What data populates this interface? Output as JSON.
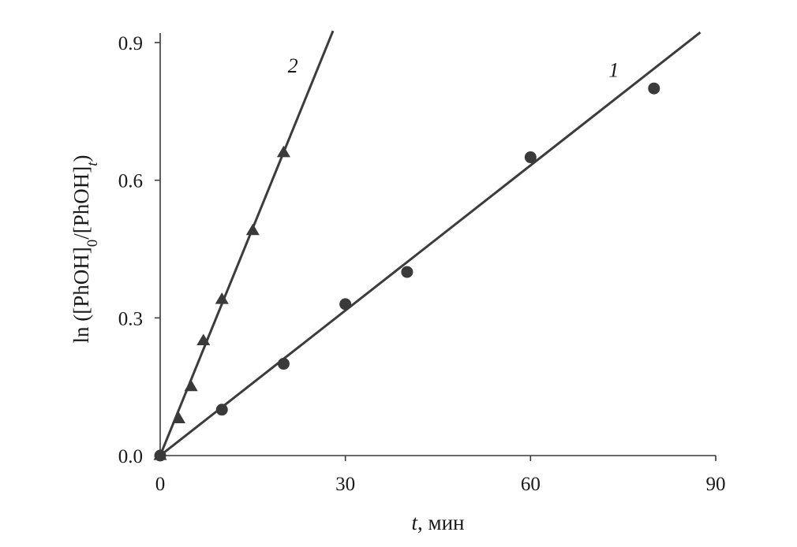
{
  "chart_data": {
    "type": "scatter",
    "title": "",
    "xlabel_italic": "t",
    "xlabel_rest": ", мин",
    "ylabel": "ln ([PhOH]0/[PhOH]t)",
    "ylabel_parts": {
      "a": "ln ([PhOH]",
      "sub0": "0",
      "b": "/[PhOH]",
      "subt": "t",
      "c": ")"
    },
    "xlim": [
      0,
      90
    ],
    "ylim": [
      0,
      0.9
    ],
    "x_ticks": [
      {
        "value": 0,
        "label": "0"
      },
      {
        "value": 30,
        "label": "30"
      },
      {
        "value": 60,
        "label": "60"
      },
      {
        "value": 90,
        "label": "90"
      }
    ],
    "y_ticks": [
      {
        "value": 0,
        "label": "0.0"
      },
      {
        "value": 0.3,
        "label": "0.3"
      },
      {
        "value": 0.6,
        "label": "0.6"
      },
      {
        "value": 0.9,
        "label": "0.9"
      }
    ],
    "grid": false,
    "colors": {
      "marker": "#3a3a3a",
      "line": "#3c3c3c",
      "axis": "#3a3a3a"
    },
    "series": [
      {
        "name": "1",
        "marker": "circle",
        "points": [
          {
            "x": 0,
            "y": 0
          },
          {
            "x": 10,
            "y": 0.1
          },
          {
            "x": 20,
            "y": 0.2
          },
          {
            "x": 30,
            "y": 0.33
          },
          {
            "x": 40,
            "y": 0.4
          },
          {
            "x": 60,
            "y": 0.65
          },
          {
            "x": 80,
            "y": 0.8
          }
        ],
        "fit": {
          "slope": 0.01054,
          "x_end": 87.5
        }
      },
      {
        "name": "2",
        "marker": "triangle",
        "points": [
          {
            "x": 0,
            "y": 0
          },
          {
            "x": 3,
            "y": 0.08
          },
          {
            "x": 5,
            "y": 0.15
          },
          {
            "x": 7,
            "y": 0.25
          },
          {
            "x": 10,
            "y": 0.34
          },
          {
            "x": 15,
            "y": 0.49
          },
          {
            "x": 20,
            "y": 0.66
          }
        ],
        "fit": {
          "slope": 0.03305,
          "x_end": 28
        }
      }
    ],
    "series_label_positions": {
      "1": {
        "x": 73.5,
        "y": 0.825
      },
      "2": {
        "x": 21.5,
        "y": 0.835
      }
    }
  }
}
